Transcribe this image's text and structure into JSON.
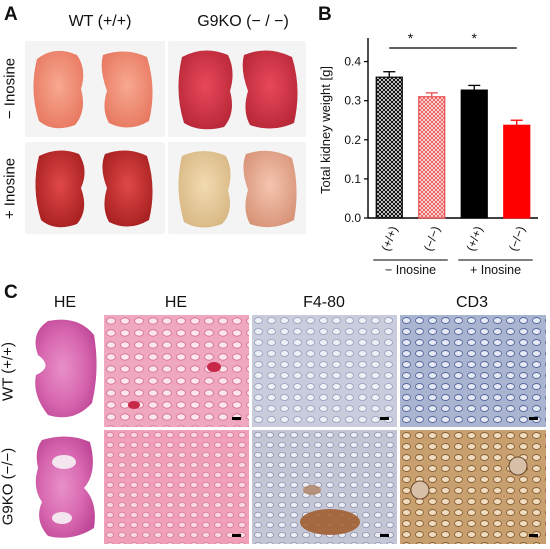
{
  "panel_a": {
    "letter": "A",
    "col_wt": "WT (+/+)",
    "col_ko": "G9KO (− / −)",
    "row_minus": "− Inosine",
    "row_plus": "+ Inosine"
  },
  "panel_b": {
    "letter": "B"
  },
  "panel_c": {
    "letter": "C",
    "col_he_small": "HE",
    "col_he": "HE",
    "col_f480": "F4-80",
    "col_cd3": "CD3",
    "row_wt": "WT (+/+)",
    "row_ko": "G9KO (−/−)"
  },
  "chart_data": {
    "type": "bar",
    "ylabel": "Total kidney weight [g]",
    "ylim": [
      0,
      0.45
    ],
    "yticks": [
      "0.0",
      "0.1",
      "0.2",
      "0.3",
      "0.4"
    ],
    "categories": [
      "(+/+)",
      "(−/−)",
      "(+/+)",
      "(−/−)"
    ],
    "groups": [
      {
        "label": "− Inosine",
        "categories": [
          0,
          1
        ]
      },
      {
        "label": "+ Inosine",
        "categories": [
          2,
          3
        ]
      }
    ],
    "values": [
      0.36,
      0.31,
      0.327,
      0.237
    ],
    "errors": [
      0.014,
      0.01,
      0.012,
      0.013
    ],
    "colors": [
      "#000000",
      "#e85050",
      "#000000",
      "#ff0000"
    ],
    "fills": [
      "crosshatch",
      "crosshatch-red",
      "solid",
      "solid"
    ],
    "significance": [
      {
        "from": 0,
        "to": 1,
        "label": "*"
      },
      {
        "from": 1,
        "to": 3,
        "label": "*"
      }
    ]
  }
}
